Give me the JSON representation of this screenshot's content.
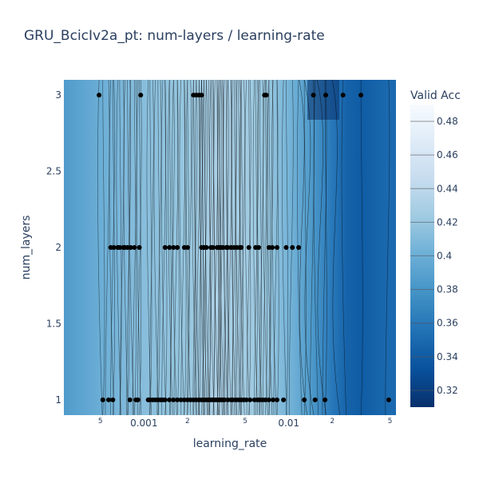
{
  "chart_data": {
    "type": "contour",
    "title": "GRU_BcicIv2a_pt: num-layers / learning-rate",
    "xlabel": "learning_rate",
    "ylabel": "num_layers",
    "xscale": "log",
    "xlim": [
      0.00028,
      0.055
    ],
    "ylim": [
      0.9,
      3.1
    ],
    "x_major_ticks": [
      {
        "value": 0.001,
        "label": "0.001"
      },
      {
        "value": 0.01,
        "label": "0.01"
      }
    ],
    "x_minor_ticks": [
      {
        "value": 0.0005,
        "label": "5"
      },
      {
        "value": 0.002,
        "label": "2"
      },
      {
        "value": 0.005,
        "label": "5"
      },
      {
        "value": 0.02,
        "label": "2"
      },
      {
        "value": 0.05,
        "label": "5"
      }
    ],
    "y_ticks": [
      {
        "value": 1,
        "label": "1"
      },
      {
        "value": 1.5,
        "label": "1.5"
      },
      {
        "value": 2,
        "label": "2"
      },
      {
        "value": 2.5,
        "label": "2.5"
      },
      {
        "value": 3,
        "label": "3"
      }
    ],
    "colorbar": {
      "title": "Valid Acc",
      "colorscale": "Blues",
      "range": [
        0.31,
        0.49
      ],
      "ticks": [
        0.32,
        0.34,
        0.36,
        0.38,
        0.4,
        0.42,
        0.44,
        0.46,
        0.48
      ],
      "tick_labels": [
        "0.32",
        "0.34",
        "0.36",
        "0.38",
        "0.4",
        "0.42",
        "0.44",
        "0.46",
        "0.48"
      ]
    },
    "surface_profile": {
      "log10_x": [
        -3.55,
        -3.3,
        -3.1,
        -2.9,
        -2.7,
        -2.5,
        -2.3,
        -2.15,
        -2.0,
        -1.85,
        -1.7,
        -1.6,
        -1.5,
        -1.4,
        -1.3
      ],
      "value": [
        0.385,
        0.4,
        0.41,
        0.415,
        0.42,
        0.43,
        0.425,
        0.42,
        0.405,
        0.385,
        0.36,
        0.345,
        0.34,
        0.345,
        0.35
      ]
    },
    "points": {
      "color": "#000000",
      "y3": [
        0.00049,
        0.00095,
        0.0022,
        0.0023,
        0.0024,
        0.0025,
        0.0068,
        0.007,
        0.0148,
        0.018,
        0.0237,
        0.0315
      ],
      "y2": [
        0.00059,
        0.00062,
        0.00066,
        0.00068,
        0.00072,
        0.00074,
        0.00077,
        0.00081,
        0.00086,
        0.00093,
        0.0014,
        0.0015,
        0.0016,
        0.0017,
        0.0019,
        0.002,
        0.0025,
        0.0026,
        0.0027,
        0.0029,
        0.003,
        0.0032,
        0.0033,
        0.0034,
        0.0035,
        0.0037,
        0.0038,
        0.004,
        0.0042,
        0.0044,
        0.0046,
        0.0047,
        0.0053,
        0.0059,
        0.0062,
        0.0073,
        0.0077,
        0.0083,
        0.0096,
        0.0106,
        0.0117
      ],
      "y1": [
        0.00052,
        0.00057,
        0.00061,
        0.0008,
        0.00088,
        0.00091,
        0.00107,
        0.0011,
        0.00115,
        0.0012,
        0.00125,
        0.0013,
        0.00135,
        0.0014,
        0.0015,
        0.0016,
        0.0017,
        0.0018,
        0.0019,
        0.002,
        0.0021,
        0.0022,
        0.0023,
        0.0024,
        0.0025,
        0.0026,
        0.0027,
        0.0028,
        0.0029,
        0.003,
        0.0031,
        0.0032,
        0.0033,
        0.0034,
        0.0035,
        0.0036,
        0.0038,
        0.004,
        0.0041,
        0.0043,
        0.0045,
        0.0047,
        0.0049,
        0.0051,
        0.0054,
        0.0058,
        0.0061,
        0.0063,
        0.0066,
        0.0069,
        0.0073,
        0.0078,
        0.0083,
        0.0092,
        0.0128,
        0.0152,
        0.0178,
        0.049
      ]
    }
  }
}
